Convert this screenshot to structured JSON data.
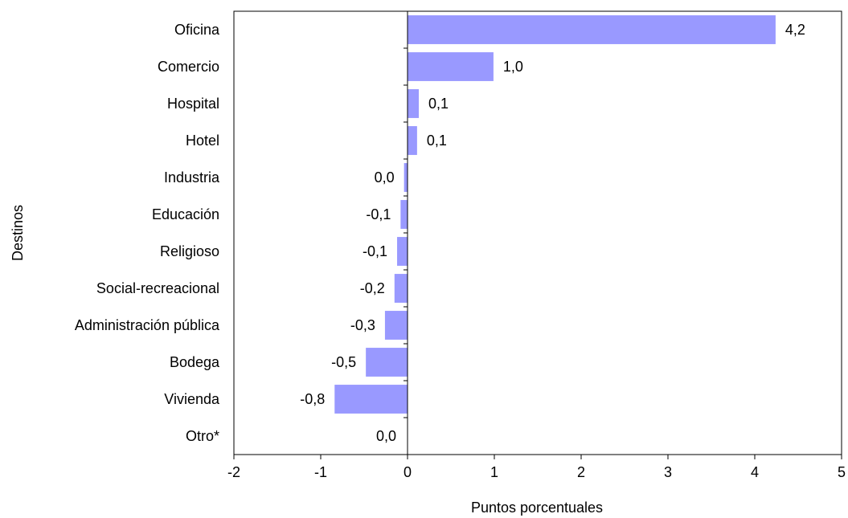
{
  "chart_data": {
    "type": "bar",
    "orientation": "horizontal",
    "categories": [
      "Oficina",
      "Comercio",
      "Hospital",
      "Hotel",
      "Industria",
      "Educación",
      "Religioso",
      "Social-recreacional",
      "Administración pública",
      "Bodega",
      "Vivienda",
      "Otro*"
    ],
    "values": [
      4.24,
      0.99,
      0.13,
      0.11,
      -0.04,
      -0.08,
      -0.12,
      -0.15,
      -0.26,
      -0.48,
      -0.84,
      0.0
    ],
    "data_labels": [
      "4,2",
      "1,0",
      "0,1",
      "0,1",
      "0,0",
      "-0,1",
      "-0,1",
      "-0,2",
      "-0,3",
      "-0,5",
      "-0,8",
      "0,0"
    ],
    "xlabel": "Puntos porcentuales",
    "ylabel": "Destinos",
    "xlim": [
      -2,
      5
    ],
    "xticks": [
      -2,
      -1,
      0,
      1,
      2,
      3,
      4,
      5
    ],
    "xtick_labels": [
      "-2",
      "-1",
      "0",
      "1",
      "2",
      "3",
      "4",
      "5"
    ],
    "grid": false,
    "bar_color": "#9999ff"
  }
}
